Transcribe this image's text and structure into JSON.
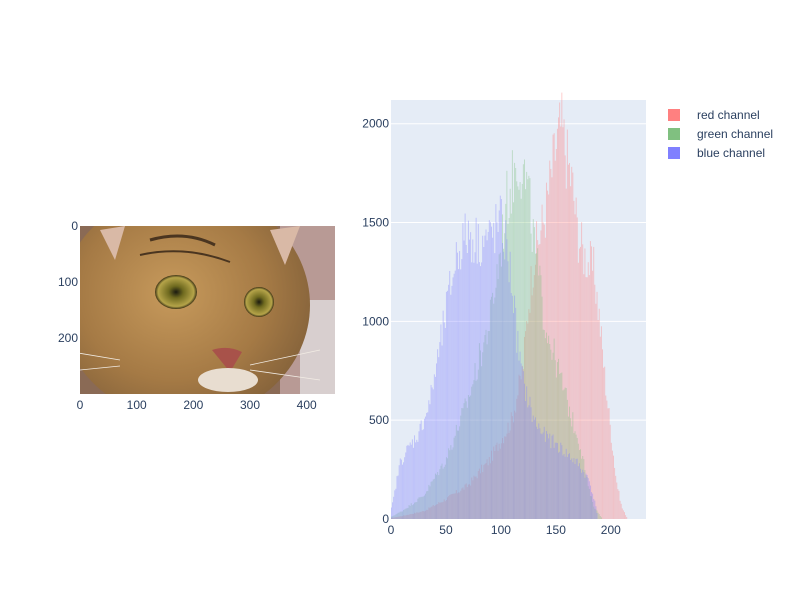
{
  "chart_data": [
    {
      "type": "image",
      "image_icon": "tabby-cat-closeup-photo",
      "x_ticks": [
        0,
        100,
        200,
        300,
        400
      ],
      "y_ticks": [
        0,
        100,
        200
      ],
      "xlim": [
        0,
        450
      ],
      "ylim": [
        300,
        0
      ]
    },
    {
      "type": "histogram",
      "xlim": [
        0,
        232
      ],
      "ylim": [
        0,
        2120
      ],
      "x_ticks": [
        0,
        50,
        100,
        150,
        200
      ],
      "y_ticks": [
        0,
        500,
        1000,
        1500,
        2000
      ],
      "grid": true,
      "legend_position": "top-right",
      "series": [
        {
          "name": "red channel",
          "color": "#ff8080",
          "keyframes": [
            [
              0,
              5
            ],
            [
              10,
              15
            ],
            [
              30,
              40
            ],
            [
              50,
              100
            ],
            [
              70,
              170
            ],
            [
              90,
              300
            ],
            [
              110,
              500
            ],
            [
              120,
              760
            ],
            [
              125,
              1080
            ],
            [
              130,
              1320
            ],
            [
              140,
              1540
            ],
            [
              150,
              1880
            ],
            [
              155,
              2000
            ],
            [
              160,
              1830
            ],
            [
              165,
              1700
            ],
            [
              170,
              1450
            ],
            [
              175,
              1350
            ],
            [
              180,
              1300
            ],
            [
              185,
              1250
            ],
            [
              190,
              1000
            ],
            [
              195,
              700
            ],
            [
              200,
              450
            ],
            [
              205,
              200
            ],
            [
              210,
              60
            ],
            [
              215,
              5
            ]
          ]
        },
        {
          "name": "green channel",
          "color": "#80c080",
          "keyframes": [
            [
              0,
              10
            ],
            [
              10,
              40
            ],
            [
              30,
              120
            ],
            [
              50,
              300
            ],
            [
              70,
              600
            ],
            [
              90,
              1000
            ],
            [
              100,
              1370
            ],
            [
              105,
              1600
            ],
            [
              110,
              1700
            ],
            [
              115,
              1820
            ],
            [
              120,
              1770
            ],
            [
              125,
              1650
            ],
            [
              130,
              1400
            ],
            [
              135,
              1200
            ],
            [
              140,
              1000
            ],
            [
              145,
              900
            ],
            [
              150,
              800
            ],
            [
              155,
              700
            ],
            [
              160,
              600
            ],
            [
              165,
              500
            ],
            [
              170,
              420
            ],
            [
              175,
              300
            ],
            [
              180,
              150
            ],
            [
              185,
              60
            ],
            [
              192,
              5
            ]
          ]
        },
        {
          "name": "blue channel",
          "color": "#8080ff",
          "keyframes": [
            [
              0,
              40
            ],
            [
              3,
              120
            ],
            [
              8,
              280
            ],
            [
              15,
              350
            ],
            [
              25,
              430
            ],
            [
              35,
              580
            ],
            [
              45,
              880
            ],
            [
              55,
              1200
            ],
            [
              60,
              1340
            ],
            [
              65,
              1400
            ],
            [
              70,
              1440
            ],
            [
              80,
              1400
            ],
            [
              90,
              1420
            ],
            [
              95,
              1460
            ],
            [
              100,
              1500
            ],
            [
              105,
              1380
            ],
            [
              110,
              1200
            ],
            [
              115,
              900
            ],
            [
              120,
              700
            ],
            [
              125,
              600
            ],
            [
              130,
              500
            ],
            [
              140,
              420
            ],
            [
              150,
              380
            ],
            [
              160,
              330
            ],
            [
              170,
              280
            ],
            [
              180,
              200
            ],
            [
              185,
              100
            ],
            [
              188,
              20
            ]
          ]
        }
      ]
    }
  ],
  "legend": {
    "items": [
      {
        "label": "red channel",
        "color": "#ff8080"
      },
      {
        "label": "green channel",
        "color": "#80c080"
      },
      {
        "label": "blue channel",
        "color": "#8080ff"
      }
    ]
  }
}
